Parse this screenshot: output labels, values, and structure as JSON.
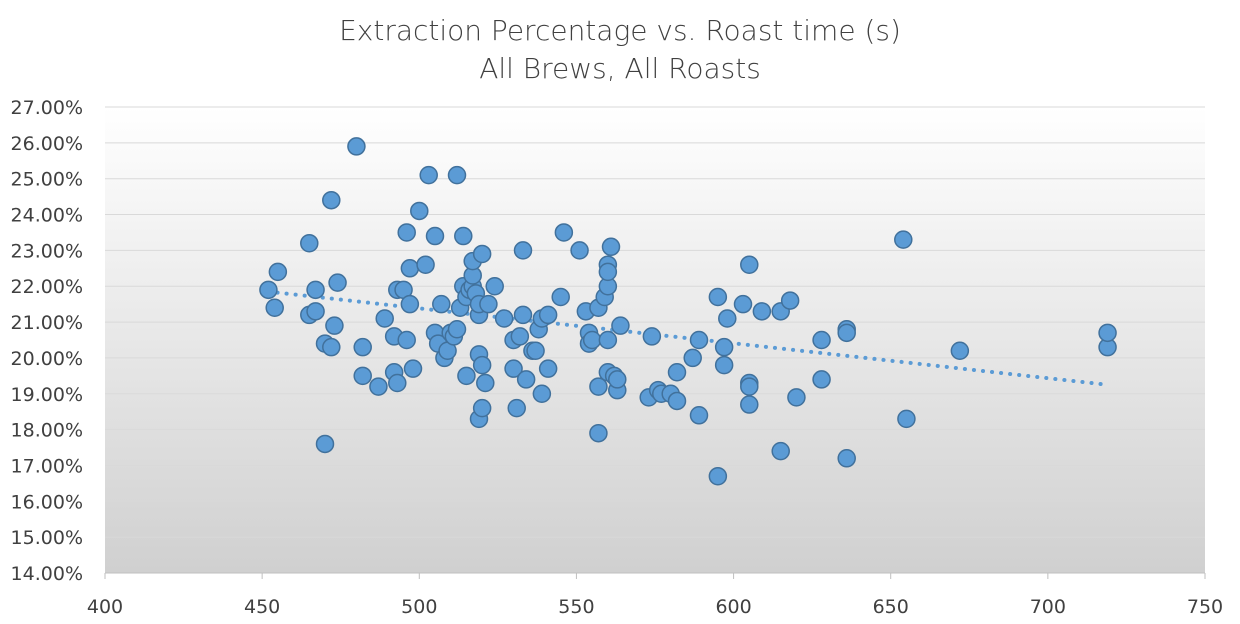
{
  "chart_data": {
    "type": "scatter",
    "title": "Extraction Percentage vs. Roast time (s)",
    "subtitle": "All Brews, All Roasts",
    "xlabel": "",
    "ylabel": "",
    "xlim": [
      400,
      750
    ],
    "ylim": [
      0.14,
      0.27
    ],
    "x_ticks": [
      400,
      450,
      500,
      550,
      600,
      650,
      700,
      750
    ],
    "x_tick_labels": [
      "400",
      "450",
      "500",
      "550",
      "600",
      "650",
      "700",
      "750"
    ],
    "y_ticks": [
      0.14,
      0.15,
      0.16,
      0.17,
      0.18,
      0.19,
      0.2,
      0.21,
      0.22,
      0.23,
      0.24,
      0.25,
      0.26,
      0.27
    ],
    "y_tick_labels": [
      "14.00%",
      "15.00%",
      "16.00%",
      "17.00%",
      "18.00%",
      "19.00%",
      "20.00%",
      "21.00%",
      "22.00%",
      "23.00%",
      "24.00%",
      "25.00%",
      "26.00%",
      "27.00%"
    ],
    "grid": true,
    "legend": "none",
    "series": [
      {
        "marker_color": "#5b9bd5",
        "marker_edge": "#41719c",
        "points": [
          [
            452,
            0.219
          ],
          [
            454,
            0.214
          ],
          [
            455,
            0.224
          ],
          [
            465,
            0.212
          ],
          [
            465,
            0.232
          ],
          [
            467,
            0.213
          ],
          [
            467,
            0.219
          ],
          [
            470,
            0.204
          ],
          [
            470,
            0.176
          ],
          [
            472,
            0.203
          ],
          [
            472,
            0.244
          ],
          [
            473,
            0.209
          ],
          [
            474,
            0.221
          ],
          [
            480,
            0.259
          ],
          [
            482,
            0.203
          ],
          [
            482,
            0.195
          ],
          [
            487,
            0.192
          ],
          [
            489,
            0.211
          ],
          [
            492,
            0.196
          ],
          [
            492,
            0.206
          ],
          [
            493,
            0.193
          ],
          [
            493,
            0.219
          ],
          [
            495,
            0.219
          ],
          [
            496,
            0.205
          ],
          [
            496,
            0.235
          ],
          [
            497,
            0.215
          ],
          [
            497,
            0.225
          ],
          [
            498,
            0.197
          ],
          [
            500,
            0.241
          ],
          [
            502,
            0.226
          ],
          [
            503,
            0.251
          ],
          [
            505,
            0.207
          ],
          [
            505,
            0.234
          ],
          [
            506,
            0.204
          ],
          [
            507,
            0.215
          ],
          [
            508,
            0.2
          ],
          [
            509,
            0.202
          ],
          [
            510,
            0.207
          ],
          [
            511,
            0.206
          ],
          [
            512,
            0.208
          ],
          [
            512,
            0.251
          ],
          [
            513,
            0.214
          ],
          [
            514,
            0.22
          ],
          [
            514,
            0.234
          ],
          [
            515,
            0.195
          ],
          [
            515,
            0.217
          ],
          [
            516,
            0.219
          ],
          [
            517,
            0.22
          ],
          [
            517,
            0.223
          ],
          [
            517,
            0.227
          ],
          [
            518,
            0.218
          ],
          [
            519,
            0.183
          ],
          [
            519,
            0.201
          ],
          [
            519,
            0.212
          ],
          [
            519,
            0.215
          ],
          [
            520,
            0.198
          ],
          [
            520,
            0.229
          ],
          [
            520,
            0.186
          ],
          [
            521,
            0.193
          ],
          [
            522,
            0.215
          ],
          [
            524,
            0.22
          ],
          [
            527,
            0.211
          ],
          [
            530,
            0.197
          ],
          [
            530,
            0.205
          ],
          [
            531,
            0.186
          ],
          [
            532,
            0.206
          ],
          [
            533,
            0.212
          ],
          [
            533,
            0.23
          ],
          [
            534,
            0.194
          ],
          [
            536,
            0.202
          ],
          [
            537,
            0.202
          ],
          [
            538,
            0.208
          ],
          [
            539,
            0.19
          ],
          [
            539,
            0.211
          ],
          [
            541,
            0.197
          ],
          [
            541,
            0.212
          ],
          [
            545,
            0.217
          ],
          [
            546,
            0.235
          ],
          [
            551,
            0.23
          ],
          [
            553,
            0.213
          ],
          [
            554,
            0.207
          ],
          [
            554,
            0.204
          ],
          [
            555,
            0.205
          ],
          [
            557,
            0.214
          ],
          [
            557,
            0.192
          ],
          [
            557,
            0.179
          ],
          [
            559,
            0.217
          ],
          [
            560,
            0.205
          ],
          [
            560,
            0.22
          ],
          [
            560,
            0.226
          ],
          [
            560,
            0.224
          ],
          [
            560,
            0.196
          ],
          [
            561,
            0.231
          ],
          [
            562,
            0.195
          ],
          [
            563,
            0.191
          ],
          [
            563,
            0.194
          ],
          [
            564,
            0.209
          ],
          [
            573,
            0.189
          ],
          [
            574,
            0.206
          ],
          [
            576,
            0.191
          ],
          [
            577,
            0.19
          ],
          [
            580,
            0.19
          ],
          [
            582,
            0.188
          ],
          [
            582,
            0.196
          ],
          [
            587,
            0.2
          ],
          [
            589,
            0.184
          ],
          [
            589,
            0.205
          ],
          [
            595,
            0.217
          ],
          [
            595,
            0.167
          ],
          [
            597,
            0.198
          ],
          [
            597,
            0.203
          ],
          [
            598,
            0.211
          ],
          [
            603,
            0.215
          ],
          [
            605,
            0.187
          ],
          [
            605,
            0.193
          ],
          [
            605,
            0.192
          ],
          [
            605,
            0.226
          ],
          [
            609,
            0.213
          ],
          [
            615,
            0.174
          ],
          [
            615,
            0.213
          ],
          [
            618,
            0.216
          ],
          [
            620,
            0.189
          ],
          [
            628,
            0.194
          ],
          [
            628,
            0.205
          ],
          [
            636,
            0.172
          ],
          [
            636,
            0.208
          ],
          [
            636,
            0.207
          ],
          [
            654,
            0.233
          ],
          [
            655,
            0.183
          ],
          [
            672,
            0.202
          ],
          [
            719,
            0.203
          ],
          [
            719,
            0.207
          ]
        ]
      }
    ],
    "trendline": {
      "style": "dotted",
      "kind": "linear",
      "color": "#5b9bd5",
      "x_start": 452,
      "x_end": 719,
      "y_start": 0.2185,
      "y_end": 0.1925
    },
    "background": {
      "gradient_top": "#ffffff",
      "gradient_bottom": "#d0d0d0"
    }
  }
}
